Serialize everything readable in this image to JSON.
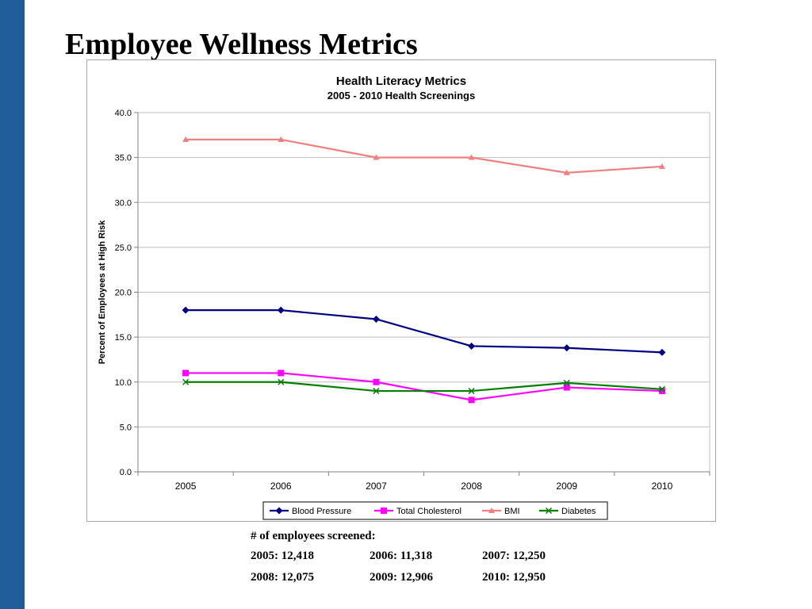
{
  "slide": {
    "title": "Employee Wellness Metrics",
    "accent_bar_color": "#1F5C99"
  },
  "chart_data": {
    "type": "line",
    "title": "Health Literacy Metrics",
    "subtitle": "2005 - 2010 Health Screenings",
    "xlabel": "",
    "ylabel": "Percent of Employees at High Risk",
    "categories": [
      "2005",
      "2006",
      "2007",
      "2008",
      "2009",
      "2010"
    ],
    "ylim": [
      0,
      40
    ],
    "ytick_step": 5,
    "ytick_labels": [
      "0.0",
      "5.0",
      "10.0",
      "15.0",
      "20.0",
      "25.0",
      "30.0",
      "35.0",
      "40.0"
    ],
    "grid": "horizontal",
    "legend_position": "bottom",
    "series": [
      {
        "name": "Blood Pressure",
        "values": [
          18.0,
          18.0,
          17.0,
          14.0,
          13.8,
          13.3
        ],
        "color": "#000080",
        "marker": "diamond"
      },
      {
        "name": "Total Cholesterol",
        "values": [
          11.0,
          11.0,
          10.0,
          8.0,
          9.4,
          9.0
        ],
        "color": "#FF00FF",
        "marker": "square"
      },
      {
        "name": "BMI",
        "values": [
          37.0,
          37.0,
          35.0,
          35.0,
          33.3,
          34.0
        ],
        "color": "#F08080",
        "marker": "triangle"
      },
      {
        "name": "Diabetes",
        "values": [
          10.0,
          10.0,
          9.0,
          9.0,
          9.9,
          9.2
        ],
        "color": "#008000",
        "marker": "x"
      }
    ]
  },
  "screened": {
    "title": "# of employees screened:",
    "rows": [
      [
        "2005: 12,418",
        "2006: 11,318",
        "2007: 12,250"
      ],
      [
        "2008: 12,075",
        "2009: 12,906",
        "2010: 12,950"
      ]
    ]
  }
}
